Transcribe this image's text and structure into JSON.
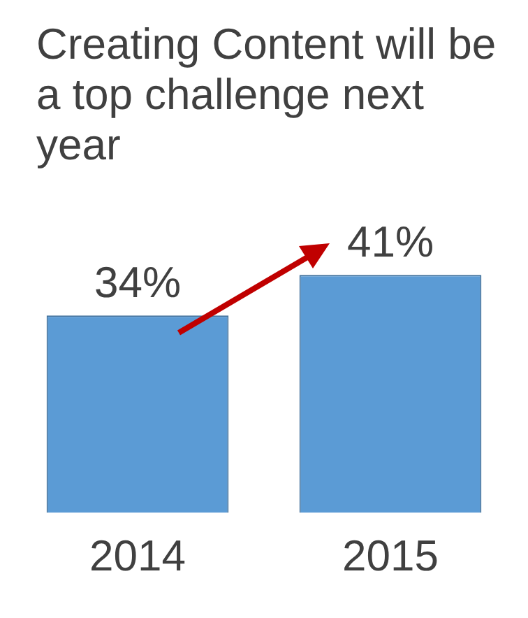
{
  "chart_data": {
    "type": "bar",
    "title": "Creating Content will be a top challenge next year",
    "categories": [
      "2014",
      "2015"
    ],
    "values": [
      34,
      41
    ],
    "value_labels": [
      "34%",
      "41%"
    ],
    "color": "#5b9bd5",
    "tick_labels": "x",
    "grid": false,
    "legend": false
  }
}
